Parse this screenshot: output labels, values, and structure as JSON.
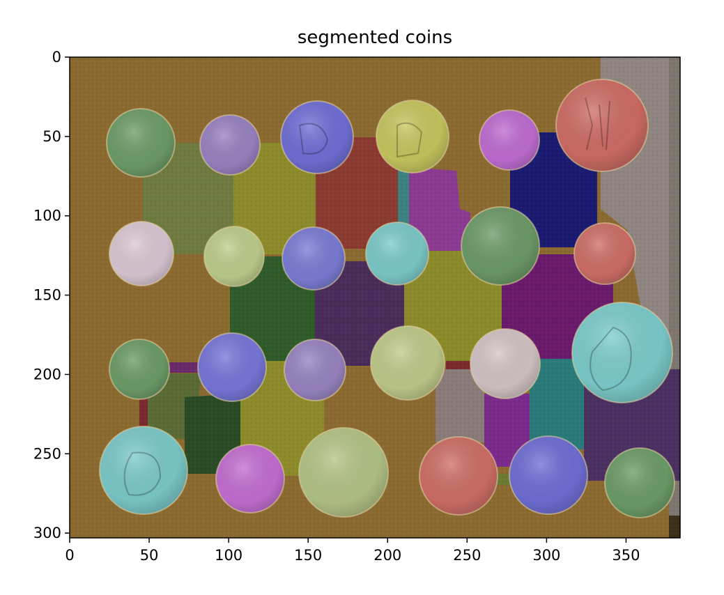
{
  "title": "segmented coins",
  "x_axis": {
    "ticks": [
      "0",
      "50",
      "100",
      "150",
      "200",
      "250",
      "300",
      "350"
    ],
    "range": [
      0,
      384
    ]
  },
  "y_axis": {
    "ticks": [
      "0",
      "50",
      "100",
      "150",
      "200",
      "250",
      "300"
    ],
    "range": [
      0,
      303
    ]
  },
  "colors": {
    "background_region": "#8a6a30",
    "coin_overlays": [
      "#6aa06a",
      "#9a86c8",
      "#7a7ae0",
      "#d0d060",
      "#c070d8",
      "#d07070",
      "#d8c8d8",
      "#c0d090",
      "#80d0d0"
    ]
  }
}
